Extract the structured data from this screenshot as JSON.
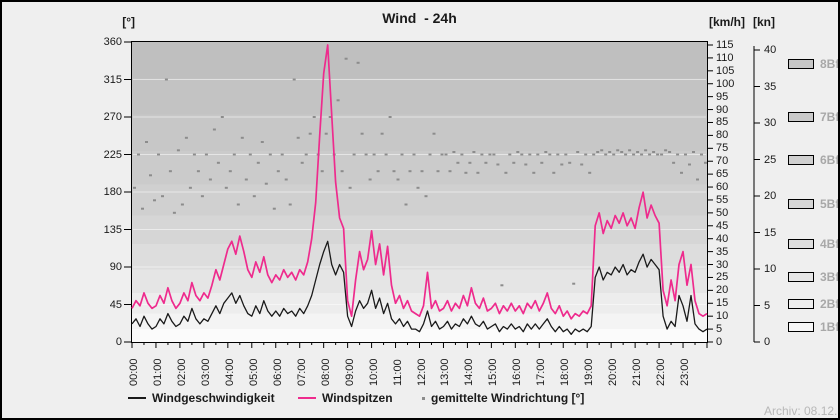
{
  "header": {
    "left_unit": "[°]",
    "title": "Wind  - 24h",
    "right_unit_kmh": "[km/h]",
    "right_unit_kn": "[kn]"
  },
  "axes": {
    "deg_ticks": [
      360,
      315,
      270,
      225,
      180,
      135,
      90,
      45,
      0
    ],
    "kmh_ticks": [
      115,
      110,
      105,
      100,
      95,
      90,
      85,
      80,
      75,
      70,
      65,
      60,
      55,
      50,
      45,
      40,
      35,
      30,
      25,
      20,
      15,
      10,
      5,
      0
    ],
    "kn_ticks": [
      40,
      35,
      30,
      25,
      20,
      15,
      10,
      5,
      0
    ],
    "x_labels": [
      "00:00",
      "01:00",
      "02:00",
      "03:00",
      "04:00",
      "05:00",
      "06:00",
      "07:00",
      "08:00",
      "09:00",
      "10:00",
      "11:00",
      "12:00",
      "13:00",
      "14:00",
      "15:00",
      "16:00",
      "17:00",
      "18:00",
      "19:00",
      "20:00",
      "21:00",
      "22:00",
      "23:00"
    ]
  },
  "beaufort_legend": [
    {
      "label": "8Bf",
      "fill": "#c6c6c6"
    },
    {
      "label": "7Bf",
      "fill": "#cacaca"
    },
    {
      "label": "6Bf",
      "fill": "#d0d0d0"
    },
    {
      "label": "5Bf",
      "fill": "#d6d6d6"
    },
    {
      "label": "4Bf",
      "fill": "#dedede"
    },
    {
      "label": "3Bf",
      "fill": "#e6e6e6"
    },
    {
      "label": "2Bf",
      "fill": "#eeeeee"
    },
    {
      "label": "1Bf",
      "fill": "#f6f6f6"
    }
  ],
  "legend": {
    "series": [
      {
        "label": "Windgeschwindigkeit",
        "color": "#1a1a1a",
        "marker": "line"
      },
      {
        "label": "Windspitzen",
        "color": "#ee2b8d",
        "marker": "line"
      },
      {
        "label": "gemittelte Windrichtung [°]",
        "color": "#8c8c8c",
        "marker": "dot"
      }
    ]
  },
  "footer": {
    "archive_label": "Archiv: 08.12."
  },
  "chart_data": {
    "type": "line",
    "title": "Wind  - 24h",
    "x_start": "00:00",
    "x_end": "24:00",
    "step_minutes": 10,
    "axis_ranges": {
      "direction_deg": [
        0,
        360
      ],
      "speed_kmh": [
        0,
        115
      ],
      "speed_kn": [
        0,
        40
      ]
    },
    "grid": "horizontal-45deg",
    "legend_position": "bottom",
    "background": "beaufort-banded-gray",
    "series": [
      {
        "name": "Windgeschwindigkeit",
        "unit": "km/h",
        "color": "#1a1a1a",
        "style": "line",
        "values": [
          7,
          9,
          6,
          10,
          7,
          5,
          6,
          9,
          7,
          11,
          8,
          6,
          7,
          10,
          8,
          13,
          9,
          7,
          9,
          8,
          11,
          14,
          11,
          15,
          17,
          19,
          15,
          18,
          14,
          11,
          10,
          14,
          11,
          16,
          12,
          10,
          12,
          10,
          13,
          11,
          12,
          10,
          13,
          11,
          14,
          18,
          24,
          30,
          35,
          39,
          30,
          26,
          30,
          27,
          10,
          6,
          12,
          16,
          13,
          15,
          20,
          13,
          17,
          11,
          15,
          9,
          7,
          9,
          6,
          8,
          5,
          5,
          4,
          7,
          12,
          6,
          8,
          5,
          6,
          8,
          5,
          7,
          6,
          9,
          7,
          10,
          7,
          6,
          8,
          5,
          6,
          7,
          4,
          6,
          5,
          7,
          5,
          6,
          4,
          7,
          5,
          7,
          5,
          7,
          9,
          6,
          4,
          6,
          4,
          5,
          3,
          5,
          4,
          5,
          4,
          6,
          25,
          29,
          24,
          27,
          26,
          29,
          27,
          30,
          26,
          28,
          27,
          31,
          34,
          29,
          32,
          30,
          28,
          10,
          5,
          8,
          6,
          18,
          14,
          8,
          18,
          7,
          5,
          4,
          5
        ]
      },
      {
        "name": "Windspitzen",
        "unit": "km/h",
        "color": "#ee2b8d",
        "style": "line",
        "values": [
          13,
          16,
          14,
          19,
          15,
          13,
          14,
          18,
          15,
          21,
          16,
          13,
          15,
          19,
          16,
          23,
          18,
          16,
          19,
          17,
          22,
          28,
          24,
          30,
          36,
          39,
          34,
          41,
          35,
          28,
          25,
          31,
          27,
          33,
          26,
          23,
          26,
          24,
          28,
          25,
          27,
          24,
          28,
          26,
          31,
          40,
          54,
          80,
          104,
          115,
          88,
          62,
          48,
          44,
          16,
          10,
          24,
          35,
          28,
          32,
          43,
          30,
          38,
          26,
          37,
          22,
          15,
          18,
          13,
          16,
          12,
          11,
          10,
          14,
          27,
          13,
          16,
          12,
          13,
          16,
          12,
          15,
          13,
          18,
          14,
          21,
          15,
          13,
          17,
          12,
          13,
          15,
          11,
          14,
          12,
          15,
          12,
          14,
          11,
          15,
          13,
          16,
          12,
          15,
          19,
          13,
          11,
          14,
          10,
          12,
          9,
          11,
          10,
          12,
          11,
          14,
          45,
          50,
          42,
          47,
          44,
          49,
          46,
          50,
          45,
          48,
          44,
          52,
          58,
          48,
          53,
          49,
          46,
          20,
          14,
          24,
          16,
          30,
          35,
          22,
          30,
          16,
          11,
          10,
          11
        ]
      },
      {
        "name": "gemittelte Windrichtung",
        "unit": "°",
        "color": "#8c8c8c",
        "style": "dots",
        "values": [
          185,
          225,
          160,
          240,
          200,
          170,
          225,
          175,
          315,
          205,
          155,
          230,
          165,
          245,
          185,
          225,
          205,
          175,
          225,
          195,
          255,
          215,
          270,
          185,
          205,
          225,
          165,
          245,
          195,
          225,
          175,
          215,
          240,
          190,
          225,
          160,
          205,
          225,
          195,
          165,
          315,
          245,
          215,
          225,
          250,
          270,
          225,
          205,
          250,
          270,
          225,
          290,
          205,
          340,
          185,
          225,
          335,
          250,
          225,
          195,
          225,
          205,
          250,
          225,
          270,
          205,
          195,
          225,
          165,
          205,
          225,
          185,
          205,
          175,
          225,
          250,
          205,
          225,
          225,
          205,
          228,
          215,
          225,
          203,
          215,
          228,
          203,
          225,
          215,
          225,
          225,
          213,
          68,
          203,
          225,
          215,
          228,
          225,
          213,
          225,
          203,
          225,
          215,
          228,
          225,
          203,
          225,
          213,
          225,
          215,
          70,
          228,
          213,
          225,
          203,
          225,
          228,
          230,
          225,
          228,
          225,
          230,
          228,
          225,
          230,
          225,
          228,
          225,
          230,
          225,
          228,
          225,
          225,
          230,
          228,
          215,
          225,
          203,
          225,
          213,
          228,
          195,
          225,
          215
        ]
      }
    ]
  }
}
